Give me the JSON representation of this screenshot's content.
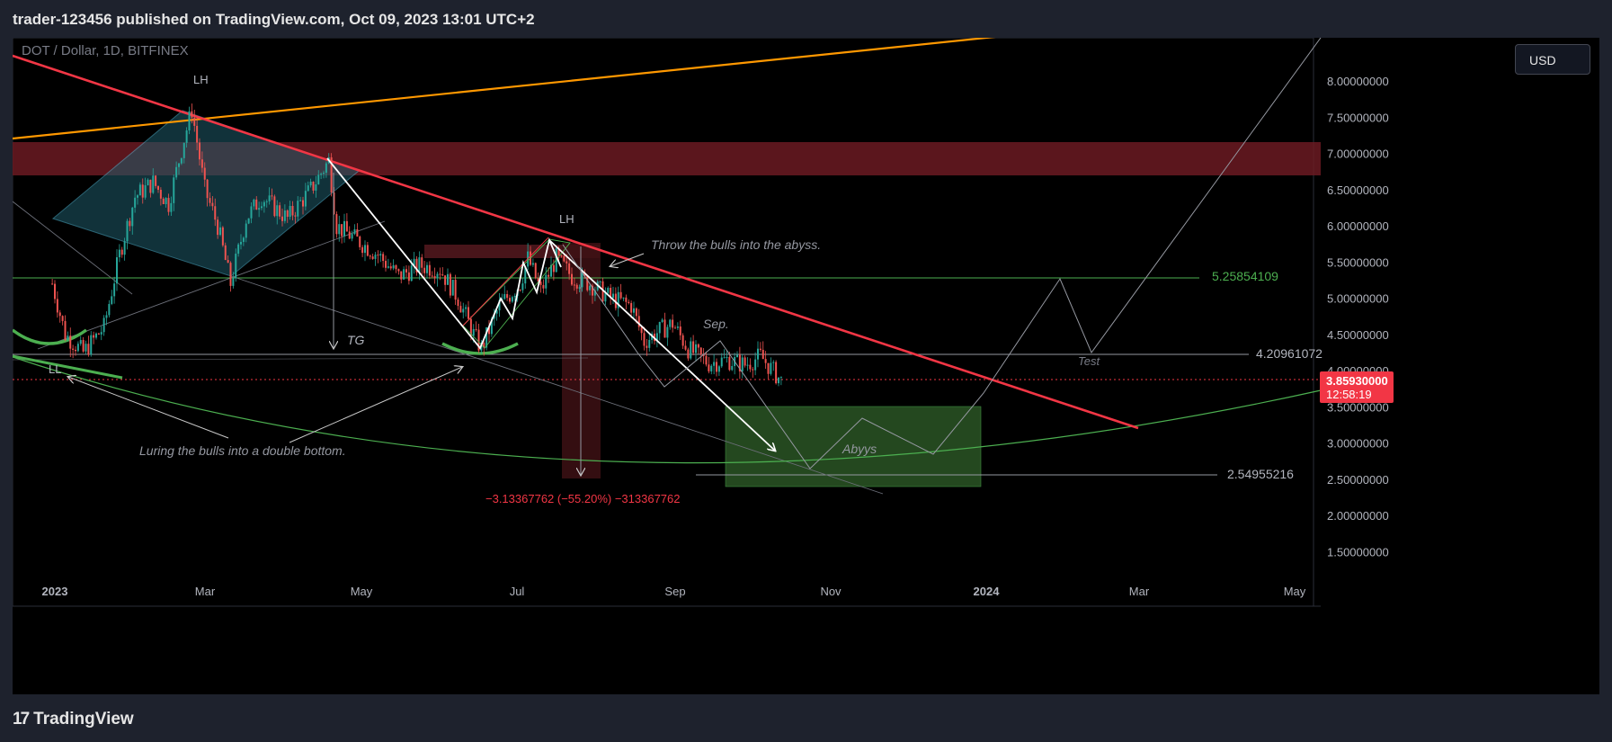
{
  "header": {
    "published_text": "trader-123456 published on TradingView.com, Oct 09, 2023 13:01 UTC+2"
  },
  "symbol_label": "DOT / Dollar, 1D, BITFINEX",
  "currency_button": "USD",
  "footer": {
    "brand": "TradingView",
    "logo_glyph": "17"
  },
  "colors": {
    "background": "#000000",
    "frame": "#1e222d",
    "downtrend": "#f23645",
    "uptrend_line": "#ff9800",
    "support_green": "#4caf50",
    "resistance_zone": "#6b1a22",
    "target_zone": "#2e5a27",
    "diamond_fill": "#1f5b6b",
    "bull_candle": "#26a69a",
    "bear_candle": "#ef5350"
  },
  "chart_data": {
    "type": "candlestick",
    "title": "DOT / Dollar, 1D, BITFINEX",
    "x_ticks": [
      "2023",
      "Mar",
      "May",
      "Jul",
      "Sep",
      "Nov",
      "2024",
      "Mar",
      "May"
    ],
    "y_ticks": [
      "8.00000000",
      "7.50000000",
      "7.00000000",
      "6.50000000",
      "6.00000000",
      "5.50000000",
      "5.00000000",
      "4.50000000",
      "4.00000000",
      "3.50000000",
      "3.00000000",
      "2.50000000",
      "2.00000000",
      "1.50000000"
    ],
    "y_range": [
      1.2,
      8.5
    ],
    "price_path": [
      {
        "date": "2022-12-31",
        "close": 5.2
      },
      {
        "date": "2023-01-05",
        "close": 4.5
      },
      {
        "date": "2023-01-12",
        "close": 4.25
      },
      {
        "date": "2023-01-20",
        "close": 4.6
      },
      {
        "date": "2023-01-26",
        "close": 5.6
      },
      {
        "date": "2023-02-01",
        "close": 6.4
      },
      {
        "date": "2023-02-08",
        "close": 6.6
      },
      {
        "date": "2023-02-14",
        "close": 6.3
      },
      {
        "date": "2023-02-20",
        "close": 7.2
      },
      {
        "date": "2023-02-23",
        "close": 7.6
      },
      {
        "date": "2023-02-28",
        "close": 6.5
      },
      {
        "date": "2023-03-05",
        "close": 6.0
      },
      {
        "date": "2023-03-10",
        "close": 5.2
      },
      {
        "date": "2023-03-16",
        "close": 6.1
      },
      {
        "date": "2023-03-22",
        "close": 6.4
      },
      {
        "date": "2023-04-01",
        "close": 6.1
      },
      {
        "date": "2023-04-10",
        "close": 6.5
      },
      {
        "date": "2023-04-17",
        "close": 6.9
      },
      {
        "date": "2023-04-20",
        "close": 6.0
      },
      {
        "date": "2023-04-28",
        "close": 5.8
      },
      {
        "date": "2023-05-06",
        "close": 5.6
      },
      {
        "date": "2023-05-14",
        "close": 5.3
      },
      {
        "date": "2023-05-22",
        "close": 5.45
      },
      {
        "date": "2023-05-30",
        "close": 5.4
      },
      {
        "date": "2023-06-06",
        "close": 5.0
      },
      {
        "date": "2023-06-12",
        "close": 4.5
      },
      {
        "date": "2023-06-15",
        "close": 4.3
      },
      {
        "date": "2023-06-22",
        "close": 4.9
      },
      {
        "date": "2023-06-30",
        "close": 5.2
      },
      {
        "date": "2023-07-03",
        "close": 5.55
      },
      {
        "date": "2023-07-08",
        "close": 5.1
      },
      {
        "date": "2023-07-14",
        "close": 5.55
      },
      {
        "date": "2023-07-20",
        "close": 5.3
      },
      {
        "date": "2023-07-27",
        "close": 5.2
      },
      {
        "date": "2023-08-04",
        "close": 5.0
      },
      {
        "date": "2023-08-12",
        "close": 4.9
      },
      {
        "date": "2023-08-17",
        "close": 4.4
      },
      {
        "date": "2023-08-23",
        "close": 4.55
      },
      {
        "date": "2023-08-28",
        "close": 4.65
      },
      {
        "date": "2023-09-03",
        "close": 4.3
      },
      {
        "date": "2023-09-11",
        "close": 4.1
      },
      {
        "date": "2023-09-18",
        "close": 4.15
      },
      {
        "date": "2023-09-25",
        "close": 4.08
      },
      {
        "date": "2023-10-01",
        "close": 4.2
      },
      {
        "date": "2023-10-09",
        "close": 3.86
      }
    ],
    "current_price": {
      "value": "3.85930000",
      "countdown": "12:58:19"
    },
    "levels": [
      {
        "label": "5.25854109",
        "value": 5.25854109,
        "color": "#4caf50"
      },
      {
        "label": "4.20961072",
        "value": 4.20961072,
        "color": "#9598a1"
      },
      {
        "label": "2.54955216",
        "value": 2.54955216,
        "color": "#9598a1"
      }
    ],
    "zones": [
      {
        "name": "resistance",
        "from": 6.65,
        "to": 7.1
      },
      {
        "name": "abyss target",
        "from": 2.35,
        "to": 3.45
      }
    ],
    "measure_label": "−3.13367762 (−55.20%) −313367762",
    "annotations": {
      "lh1": "LH",
      "lh2": "LH",
      "ll": "LL",
      "tg": "TG",
      "sep": "Sep.",
      "test": "Test",
      "abyss": "Abyys",
      "throw": "Throw the bulls into the abyss.",
      "luring": "Luring the bulls into a double bottom."
    }
  }
}
